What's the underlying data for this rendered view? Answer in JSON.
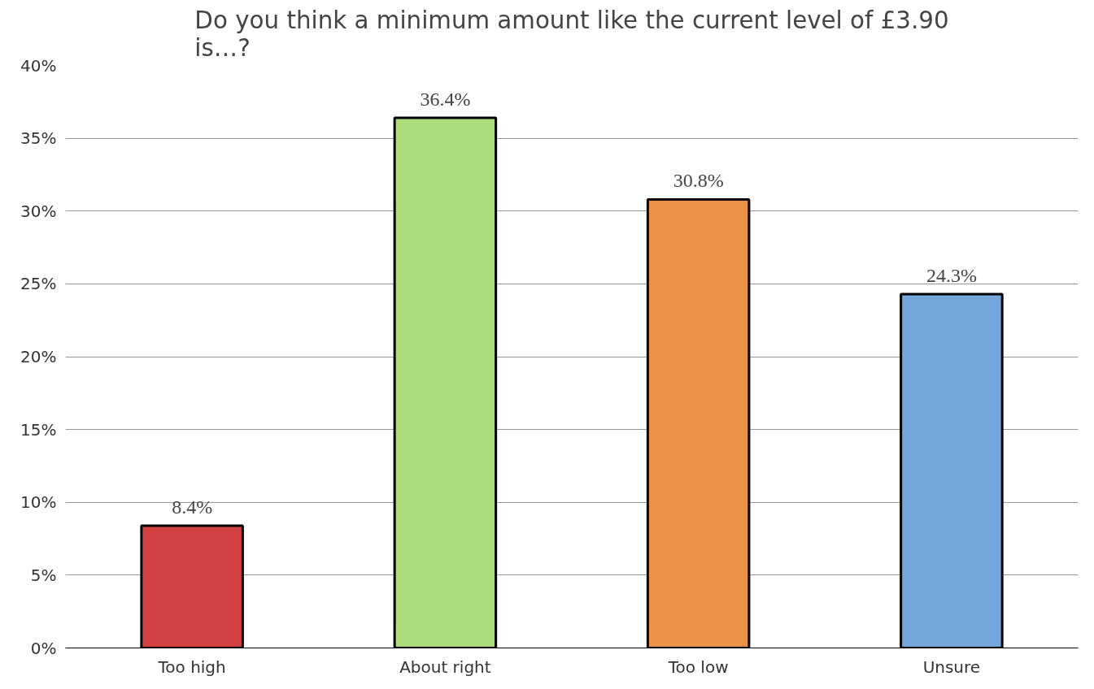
{
  "chart_data": {
    "type": "bar",
    "title": "Do you think a minimum amount like the current level of £3.90 is…?",
    "categories": [
      "Too high",
      "About right",
      "Too low",
      "Unsure"
    ],
    "values": [
      8.4,
      36.4,
      30.8,
      24.3
    ],
    "colors": [
      "#d24141",
      "#acdc7a",
      "#eb9045",
      "#74a6dc"
    ],
    "value_labels": [
      "8.4%",
      "36.4%",
      "30.8%",
      "24.3%"
    ],
    "ylim": [
      0,
      40
    ],
    "yticks": [
      {
        "value": 0,
        "label": "0%"
      },
      {
        "value": 5,
        "label": "5%"
      },
      {
        "value": 10,
        "label": "10%"
      },
      {
        "value": 15,
        "label": "15%"
      },
      {
        "value": 20,
        "label": "20%"
      },
      {
        "value": 25,
        "label": "25%"
      },
      {
        "value": 30,
        "label": "30%"
      },
      {
        "value": 35,
        "label": "35%"
      },
      {
        "value": 40,
        "label": "40%"
      }
    ],
    "grid": "y"
  }
}
